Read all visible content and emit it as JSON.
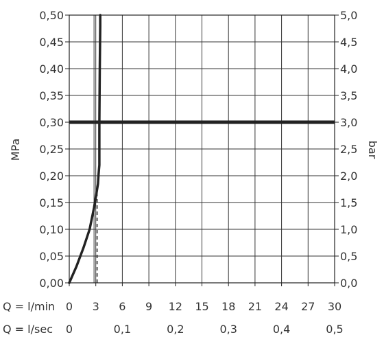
{
  "chart_data": {
    "type": "line",
    "left_axis": {
      "label": "MPa",
      "ticks": [
        "0,00",
        "0,05",
        "0,10",
        "0,15",
        "0,20",
        "0,25",
        "0,30",
        "0,35",
        "0,40",
        "0,45",
        "0,50"
      ],
      "range": [
        0,
        0.5
      ]
    },
    "right_axis": {
      "label": "bar",
      "ticks": [
        "0,0",
        "0,5",
        "1,0",
        "1,5",
        "2,0",
        "2,5",
        "3,0",
        "3,5",
        "4,0",
        "4,5",
        "5,0"
      ],
      "range": [
        0,
        5
      ]
    },
    "x_axis_lmin": {
      "label": "Q = l/min",
      "ticks": [
        "0",
        "3",
        "6",
        "9",
        "12",
        "15",
        "18",
        "21",
        "24",
        "27",
        "30"
      ],
      "range": [
        0,
        30
      ]
    },
    "x_axis_lsec": {
      "label": "Q = l/sec",
      "ticks": [
        "0",
        "0,1",
        "0,2",
        "0,3",
        "0,4",
        "0,5"
      ],
      "range": [
        0,
        0.5
      ]
    },
    "grid": true,
    "series": [
      {
        "style": "solid",
        "x": [
          0,
          0.8,
          1.6,
          2.3,
          2.8,
          3.1,
          3.25,
          3.3,
          3.35,
          3.4,
          3.4,
          3.45,
          3.5,
          3.5
        ],
        "y": [
          0,
          0.03,
          0.065,
          0.1,
          0.14,
          0.17,
          0.185,
          0.2,
          0.21,
          0.22,
          0.3,
          0.4,
          0.48,
          0.5
        ]
      },
      {
        "style": "dashed",
        "x": [
          3.15,
          3.15
        ],
        "y": [
          0,
          0.175
        ]
      }
    ],
    "reference_lines": [
      {
        "axis": "y",
        "value": 0.3,
        "style": "bold"
      },
      {
        "axis": "x",
        "value": 2.8,
        "style": "thin",
        "y_range": [
          0,
          0.5
        ]
      }
    ]
  }
}
